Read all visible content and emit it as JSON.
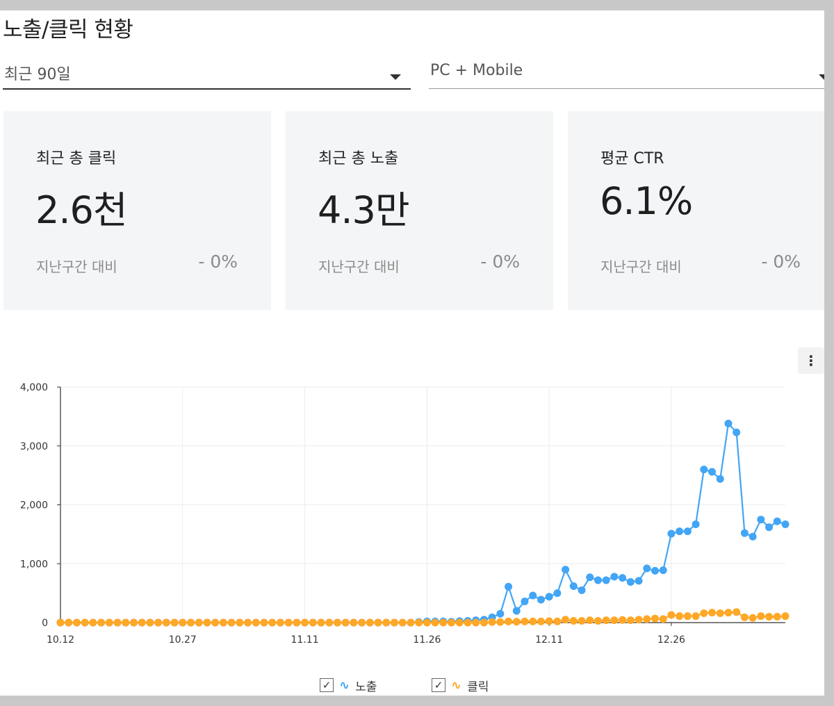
{
  "page": {
    "title": "노출/클릭 현황",
    "period_select": {
      "value": "최근 90일"
    },
    "device_select": {
      "value": "PC + Mobile"
    }
  },
  "cards": {
    "clicks": {
      "label": "최근 총 클릭",
      "value": "2.6천",
      "compare_label": "지난구간 대비",
      "compare_value": "- 0%"
    },
    "impressions": {
      "label": "최근 총 노출",
      "value": "4.3만",
      "compare_label": "지난구간 대비",
      "compare_value": "- 0%"
    },
    "ctr": {
      "label": "평균 CTR",
      "value": "6.1%",
      "compare_label": "지난구간 대비",
      "compare_value": "- 0%"
    }
  },
  "menu_icon": "more-vertical-icon",
  "legend": {
    "impressions": {
      "label": "노출",
      "checked": true,
      "icon": "line-series-icon"
    },
    "clicks": {
      "label": "클릭",
      "checked": true,
      "icon": "line-series-icon"
    }
  },
  "chart_data": {
    "type": "line",
    "x_start": "10.12",
    "x_end": "01.09",
    "x_tick_labels": [
      "10.12",
      "10.27",
      "11.11",
      "11.26",
      "12.11",
      "12.26"
    ],
    "y_ticks": [
      0,
      1000,
      2000,
      3000,
      4000
    ],
    "y_tick_labels": [
      "0",
      "1,000",
      "2,000",
      "3,000",
      "4,000"
    ],
    "ylim": [
      0,
      4000
    ],
    "grid": true,
    "legend_position": "bottom-center",
    "series": [
      {
        "name": "노출",
        "color": "#42a5f5",
        "values": [
          0,
          0,
          0,
          0,
          0,
          0,
          0,
          0,
          0,
          0,
          0,
          0,
          0,
          0,
          0,
          0,
          0,
          0,
          0,
          0,
          0,
          0,
          0,
          0,
          0,
          0,
          0,
          0,
          0,
          0,
          0,
          0,
          0,
          0,
          0,
          0,
          0,
          0,
          0,
          0,
          0,
          0,
          0,
          0,
          10,
          20,
          20,
          20,
          15,
          25,
          30,
          40,
          50,
          90,
          150,
          610,
          200,
          360,
          460,
          390,
          440,
          500,
          900,
          620,
          550,
          770,
          720,
          720,
          780,
          760,
          690,
          710,
          920,
          880,
          890,
          1510,
          1550,
          1550,
          1670,
          2600,
          2560,
          2440,
          3380,
          3230,
          1520,
          1460,
          1750,
          1620,
          1720,
          1670
        ]
      },
      {
        "name": "클릭",
        "color": "#ffa726",
        "values": [
          0,
          0,
          0,
          0,
          0,
          0,
          0,
          0,
          0,
          0,
          0,
          0,
          0,
          0,
          0,
          0,
          0,
          0,
          0,
          0,
          0,
          0,
          0,
          0,
          0,
          0,
          0,
          0,
          0,
          0,
          0,
          0,
          0,
          0,
          0,
          0,
          0,
          0,
          0,
          0,
          0,
          0,
          0,
          0,
          0,
          0,
          0,
          0,
          0,
          0,
          0,
          0,
          0,
          10,
          10,
          20,
          15,
          20,
          20,
          20,
          25,
          20,
          50,
          30,
          30,
          40,
          30,
          40,
          40,
          45,
          40,
          50,
          60,
          70,
          60,
          130,
          110,
          110,
          110,
          160,
          170,
          160,
          170,
          180,
          90,
          80,
          110,
          100,
          100,
          110
        ]
      }
    ]
  }
}
